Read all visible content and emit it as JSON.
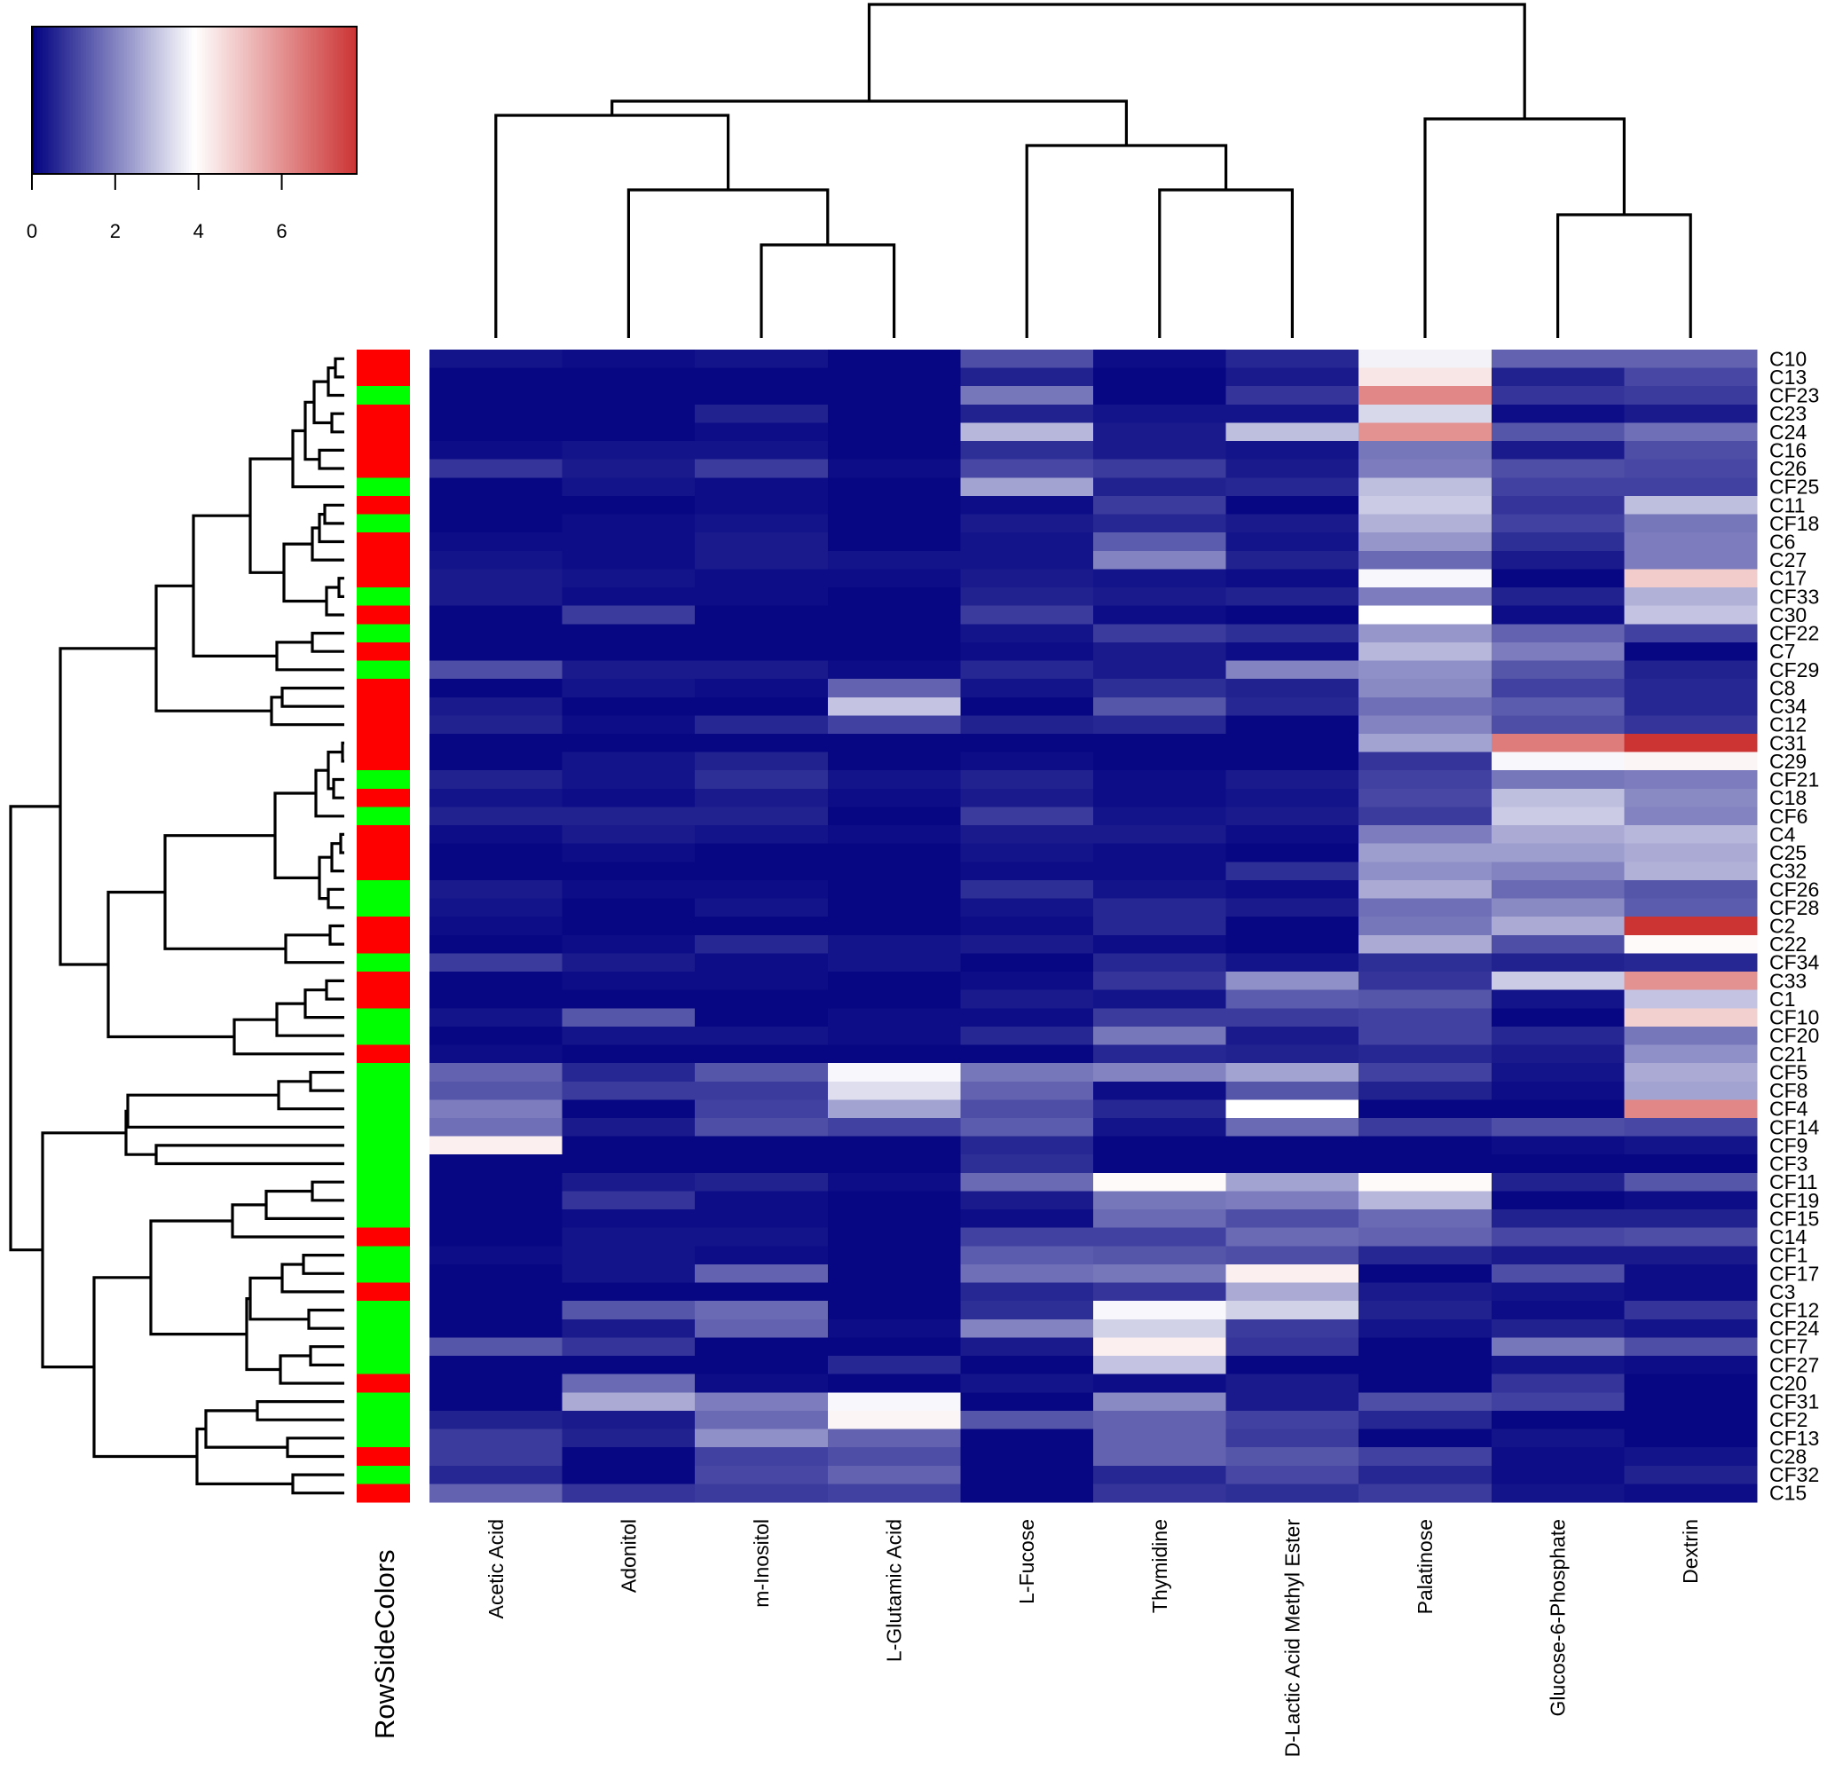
{
  "chart_data": {
    "type": "heatmap",
    "title": "",
    "colorscale": {
      "low": "#000080",
      "mid": "#ffffff",
      "high": "#cc3333",
      "range": [
        0,
        7.8
      ],
      "midpoint": 3.9,
      "ticks": [
        0,
        2,
        4,
        6
      ]
    },
    "row_side_label": "RowSideColors",
    "row_side_palette": {
      "C": "#ff0000",
      "F": "#00ff00"
    },
    "columns": [
      "Acetic Acid",
      "Adonitol",
      "m-Inositol",
      "L-Glutamic Acid",
      "L-Fucose",
      "Thymidine",
      "D-Lactic Acid Methyl Ester",
      "Palatinose",
      "Glucose-6-Phosphate",
      "Dextrin"
    ],
    "rows": [
      "C10",
      "C13",
      "CF23",
      "C23",
      "C24",
      "C16",
      "C26",
      "CF25",
      "C11",
      "CF18",
      "C6",
      "C27",
      "C17",
      "CF33",
      "C30",
      "CF22",
      "C7",
      "CF29",
      "C8",
      "C34",
      "C12",
      "C31",
      "C29",
      "CF21",
      "C18",
      "CF6",
      "C4",
      "C25",
      "C32",
      "CF26",
      "CF28",
      "C2",
      "C22",
      "CF34",
      "C33",
      "C1",
      "CF10",
      "CF20",
      "C21",
      "CF5",
      "CF8",
      "CF4",
      "CF14",
      "CF9",
      "CF3",
      "CF11",
      "CF19",
      "CF15",
      "C14",
      "CF1",
      "CF17",
      "C3",
      "CF12",
      "CF24",
      "CF7",
      "CF27",
      "C20",
      "CF31",
      "CF2",
      "CF13",
      "C28",
      "CF32",
      "C15"
    ],
    "row_groups": "CCFCCCCFCFCCCFCFCFCCCCCFCFCCCFFCCFCCFFCFFFFFFFFFCFFCFFFFCFFFCFC",
    "values": [
      [
        0.3,
        0.2,
        0.3,
        0.1,
        1.2,
        0.2,
        0.6,
        3.7,
        1.5,
        1.5
      ],
      [
        0.1,
        0.1,
        0.1,
        0.1,
        0.5,
        0.1,
        0.4,
        4.4,
        0.5,
        1.1
      ],
      [
        0.1,
        0.1,
        0.1,
        0.1,
        1.8,
        0.1,
        0.8,
        6.2,
        0.8,
        0.9
      ],
      [
        0.1,
        0.1,
        0.5,
        0.1,
        0.5,
        0.3,
        0.3,
        3.3,
        0.2,
        0.4
      ],
      [
        0.1,
        0.1,
        0.2,
        0.1,
        2.8,
        0.4,
        2.9,
        6.0,
        1.3,
        1.7
      ],
      [
        0.2,
        0.3,
        0.3,
        0.1,
        0.7,
        0.4,
        0.3,
        1.8,
        0.4,
        1.2
      ],
      [
        0.8,
        0.4,
        0.9,
        0.2,
        1.1,
        0.9,
        0.4,
        1.9,
        1.2,
        1.1
      ],
      [
        0.1,
        0.3,
        0.2,
        0.1,
        2.5,
        0.5,
        0.6,
        2.9,
        1.0,
        1.0
      ],
      [
        0.1,
        0.1,
        0.2,
        0.1,
        0.2,
        0.9,
        0.1,
        3.1,
        0.8,
        2.9
      ],
      [
        0.1,
        0.2,
        0.3,
        0.1,
        0.4,
        0.6,
        0.4,
        2.7,
        1.0,
        1.8
      ],
      [
        0.2,
        0.2,
        0.4,
        0.1,
        0.3,
        1.4,
        0.3,
        2.3,
        0.7,
        1.9
      ],
      [
        0.3,
        0.2,
        0.4,
        0.3,
        0.3,
        2.0,
        0.5,
        1.6,
        0.4,
        1.9
      ],
      [
        0.4,
        0.3,
        0.2,
        0.2,
        0.4,
        0.3,
        0.2,
        3.8,
        0.1,
        4.9
      ],
      [
        0.4,
        0.2,
        0.2,
        0.1,
        0.5,
        0.4,
        0.5,
        1.9,
        0.5,
        2.7
      ],
      [
        0.1,
        0.9,
        0.1,
        0.1,
        0.9,
        0.2,
        0.1,
        3.9,
        0.2,
        3.0
      ],
      [
        0.1,
        0.1,
        0.1,
        0.1,
        0.3,
        0.9,
        0.7,
        2.3,
        1.5,
        1.0
      ],
      [
        0.1,
        0.1,
        0.1,
        0.1,
        0.2,
        0.4,
        0.2,
        2.8,
        1.9,
        0.1
      ],
      [
        1.2,
        0.4,
        0.4,
        0.2,
        0.6,
        0.4,
        2.0,
        2.2,
        1.3,
        0.5
      ],
      [
        0.1,
        0.3,
        0.2,
        1.5,
        0.3,
        0.7,
        0.5,
        2.1,
        1.0,
        0.6
      ],
      [
        0.4,
        0.1,
        0.1,
        3.0,
        0.1,
        1.3,
        0.6,
        1.7,
        1.4,
        0.6
      ],
      [
        0.5,
        0.2,
        0.6,
        1.0,
        0.5,
        0.6,
        0.1,
        2.0,
        1.2,
        0.8
      ],
      [
        0.1,
        0.1,
        0.1,
        0.1,
        0.1,
        0.1,
        0.1,
        2.5,
        6.4,
        7.8
      ],
      [
        0.1,
        0.3,
        0.5,
        0.1,
        0.2,
        0.1,
        0.1,
        0.8,
        3.8,
        4.1
      ],
      [
        0.5,
        0.3,
        0.7,
        0.3,
        0.5,
        0.2,
        0.4,
        1.0,
        1.8,
        1.9
      ],
      [
        0.3,
        0.2,
        0.4,
        0.2,
        0.4,
        0.2,
        0.3,
        1.1,
        2.9,
        2.1
      ],
      [
        0.5,
        0.5,
        0.5,
        0.1,
        0.9,
        0.3,
        0.4,
        0.9,
        3.1,
        2.0
      ],
      [
        0.2,
        0.4,
        0.3,
        0.2,
        0.4,
        0.4,
        0.2,
        1.9,
        2.6,
        2.8
      ],
      [
        0.1,
        0.2,
        0.1,
        0.1,
        0.3,
        0.2,
        0.1,
        2.4,
        2.4,
        2.6
      ],
      [
        0.1,
        0.1,
        0.1,
        0.1,
        0.2,
        0.2,
        0.7,
        2.2,
        2.0,
        2.7
      ],
      [
        0.4,
        0.2,
        0.2,
        0.1,
        0.7,
        0.3,
        0.2,
        2.6,
        1.6,
        1.3
      ],
      [
        0.3,
        0.1,
        0.3,
        0.1,
        0.3,
        0.6,
        0.4,
        1.7,
        2.1,
        1.4
      ],
      [
        0.2,
        0.1,
        0.1,
        0.1,
        0.2,
        0.6,
        0.1,
        1.8,
        2.6,
        7.8
      ],
      [
        0.1,
        0.2,
        0.6,
        0.3,
        0.4,
        0.2,
        0.1,
        2.6,
        1.2,
        4.0
      ],
      [
        0.9,
        0.4,
        0.2,
        0.3,
        0.1,
        0.6,
        0.3,
        0.7,
        0.5,
        0.6
      ],
      [
        0.1,
        0.2,
        0.2,
        0.1,
        0.2,
        0.8,
        2.2,
        0.8,
        3.1,
        6.0
      ],
      [
        0.1,
        0.1,
        0.1,
        0.1,
        0.4,
        0.3,
        1.4,
        1.3,
        0.3,
        3.0
      ],
      [
        0.3,
        1.3,
        0.1,
        0.2,
        0.2,
        0.9,
        0.9,
        1.0,
        0.1,
        4.8
      ],
      [
        0.1,
        0.3,
        0.3,
        0.2,
        0.6,
        1.8,
        0.4,
        1.0,
        0.6,
        1.8
      ],
      [
        0.2,
        0.1,
        0.1,
        0.1,
        0.1,
        0.6,
        0.5,
        0.6,
        0.4,
        2.2
      ],
      [
        1.5,
        0.6,
        1.3,
        3.8,
        1.8,
        2.0,
        2.5,
        1.0,
        0.3,
        2.6
      ],
      [
        1.3,
        0.9,
        0.9,
        3.4,
        1.5,
        0.2,
        1.3,
        0.5,
        0.2,
        2.5
      ],
      [
        1.9,
        0.1,
        1.0,
        2.5,
        1.2,
        0.6,
        3.9,
        0.1,
        0.1,
        6.2
      ],
      [
        1.7,
        0.4,
        1.2,
        1.0,
        1.4,
        0.3,
        1.6,
        0.9,
        1.2,
        1.1
      ],
      [
        4.2,
        0.1,
        0.1,
        0.1,
        0.6,
        0.1,
        0.1,
        0.1,
        0.2,
        0.3
      ],
      [
        0.1,
        0.1,
        0.1,
        0.1,
        0.7,
        0.1,
        0.1,
        0.1,
        0.1,
        0.1
      ],
      [
        0.1,
        0.4,
        0.5,
        0.2,
        1.6,
        4.0,
        2.5,
        4.0,
        0.5,
        1.3
      ],
      [
        0.1,
        0.8,
        0.2,
        0.1,
        0.4,
        1.8,
        1.9,
        2.8,
        0.1,
        0.2
      ],
      [
        0.1,
        0.2,
        0.2,
        0.1,
        0.2,
        1.6,
        1.2,
        1.6,
        0.5,
        0.5
      ],
      [
        0.1,
        0.3,
        0.3,
        0.1,
        1.0,
        1.0,
        1.6,
        1.5,
        1.1,
        1.2
      ],
      [
        0.2,
        0.3,
        0.2,
        0.1,
        1.4,
        1.3,
        1.2,
        0.6,
        0.4,
        0.4
      ],
      [
        0.1,
        0.3,
        1.5,
        0.1,
        1.7,
        1.8,
        4.2,
        0.1,
        1.2,
        0.2
      ],
      [
        0.1,
        0.1,
        0.1,
        0.1,
        0.6,
        0.8,
        2.6,
        0.4,
        0.3,
        0.2
      ],
      [
        0.1,
        1.3,
        1.6,
        0.1,
        0.7,
        3.8,
        3.2,
        0.5,
        0.2,
        0.8
      ],
      [
        0.1,
        0.4,
        1.5,
        0.2,
        2.0,
        3.2,
        0.9,
        0.3,
        0.5,
        0.3
      ],
      [
        1.3,
        0.8,
        0.1,
        0.1,
        0.4,
        4.2,
        0.8,
        0.1,
        1.8,
        1.2
      ],
      [
        0.1,
        0.1,
        0.1,
        0.6,
        0.1,
        3.0,
        0.1,
        0.1,
        0.3,
        0.2
      ],
      [
        0.1,
        1.6,
        0.2,
        0.1,
        0.3,
        0.2,
        0.4,
        0.1,
        0.8,
        0.1
      ],
      [
        0.1,
        2.6,
        1.9,
        3.8,
        0.1,
        2.1,
        0.4,
        1.2,
        1.0,
        0.1
      ],
      [
        0.5,
        0.4,
        1.6,
        4.1,
        1.3,
        1.5,
        1.0,
        0.6,
        0.1,
        0.1
      ],
      [
        0.9,
        0.5,
        2.2,
        1.5,
        0.1,
        1.5,
        0.9,
        0.1,
        0.3,
        0.1
      ],
      [
        0.9,
        0.1,
        1.0,
        1.2,
        0.1,
        1.5,
        1.3,
        1.0,
        0.2,
        0.3
      ],
      [
        0.6,
        0.1,
        1.1,
        1.5,
        0.1,
        0.6,
        1.1,
        0.6,
        0.2,
        0.5
      ],
      [
        1.5,
        0.8,
        0.9,
        1.0,
        0.1,
        0.8,
        0.7,
        0.9,
        0.3,
        0.2
      ]
    ]
  }
}
